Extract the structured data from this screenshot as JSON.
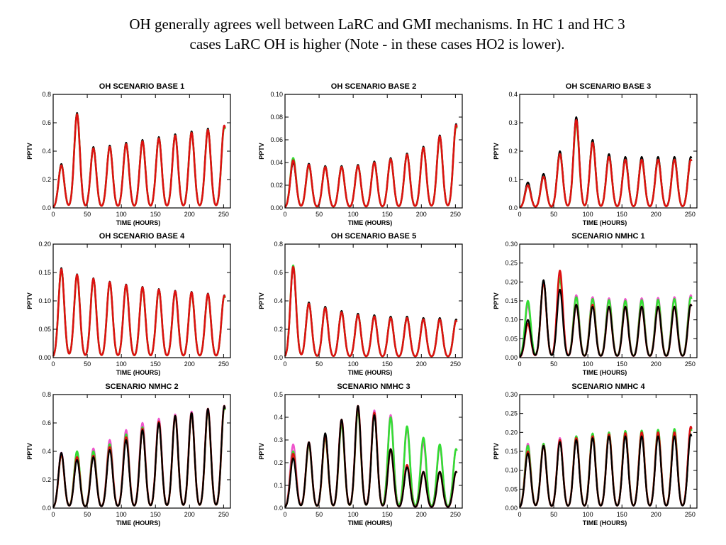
{
  "slide": {
    "title_line1": "OH generally agrees well between LaRC and GMI mechanisms.  In HC 1 and HC 3",
    "title_line2": "cases LaRC OH is higher (Note - in these cases HO2 is lower)."
  },
  "colors": {
    "black": "#000000",
    "green": "#33dd33",
    "red": "#dd1111",
    "magenta": "#ee55cc"
  },
  "chart_data": [
    {
      "type": "line",
      "title": "OH SCENARIO BASE      1",
      "xlabel": "TIME (HOURS)",
      "ylabel": "PPTV",
      "xlim": [
        0,
        260
      ],
      "ylim": [
        0,
        0.8
      ],
      "xticks": [
        "0",
        "50",
        "100",
        "150",
        "200",
        "250"
      ],
      "yticks": [
        "0.0",
        "0.2",
        "0.4",
        "0.6",
        "0.8"
      ],
      "peak_times": [
        12,
        35,
        59,
        83,
        107,
        131,
        155,
        179,
        203,
        227,
        251
      ],
      "series": [
        {
          "color": "black",
          "peaks": [
            0.31,
            0.67,
            0.43,
            0.44,
            0.46,
            0.48,
            0.5,
            0.52,
            0.54,
            0.56,
            0.58
          ]
        },
        {
          "color": "green",
          "peaks": [
            0.3,
            0.66,
            0.42,
            0.43,
            0.45,
            0.47,
            0.49,
            0.51,
            0.53,
            0.55,
            0.57
          ]
        },
        {
          "color": "red",
          "peaks": [
            0.3,
            0.66,
            0.42,
            0.43,
            0.45,
            0.47,
            0.49,
            0.51,
            0.53,
            0.55,
            0.58
          ]
        }
      ]
    },
    {
      "type": "line",
      "title": "OH SCENARIO BASE      2",
      "xlabel": "TIME (HOURS)",
      "ylabel": "PPTV",
      "xlim": [
        0,
        260
      ],
      "ylim": [
        0,
        0.1
      ],
      "xticks": [
        "0",
        "50",
        "100",
        "150",
        "200",
        "250"
      ],
      "yticks": [
        "0.00",
        "0.02",
        "0.04",
        "0.06",
        "0.08",
        "0.10"
      ],
      "peak_times": [
        12,
        35,
        59,
        83,
        107,
        131,
        155,
        179,
        203,
        227,
        251
      ],
      "series": [
        {
          "color": "black",
          "peaks": [
            0.04,
            0.039,
            0.037,
            0.037,
            0.038,
            0.041,
            0.044,
            0.048,
            0.054,
            0.064,
            0.074
          ]
        },
        {
          "color": "green",
          "peaks": [
            0.044,
            0.037,
            0.036,
            0.036,
            0.037,
            0.04,
            0.043,
            0.047,
            0.053,
            0.062,
            0.072
          ]
        },
        {
          "color": "red",
          "peaks": [
            0.042,
            0.038,
            0.036,
            0.036,
            0.037,
            0.04,
            0.043,
            0.047,
            0.053,
            0.063,
            0.073
          ]
        }
      ]
    },
    {
      "type": "line",
      "title": "OH SCENARIO BASE      3",
      "xlabel": "TIME (HOURS)",
      "ylabel": "PPTV",
      "xlim": [
        0,
        260
      ],
      "ylim": [
        0,
        0.4
      ],
      "xticks": [
        "0",
        "50",
        "100",
        "150",
        "200",
        "250"
      ],
      "yticks": [
        "0.0",
        "0.1",
        "0.2",
        "0.3",
        "0.4"
      ],
      "peak_times": [
        12,
        35,
        59,
        83,
        107,
        131,
        155,
        179,
        203,
        227,
        251
      ],
      "series": [
        {
          "color": "black",
          "peaks": [
            0.09,
            0.12,
            0.2,
            0.32,
            0.24,
            0.19,
            0.18,
            0.18,
            0.18,
            0.18,
            0.18
          ]
        },
        {
          "color": "green",
          "peaks": [
            0.08,
            0.11,
            0.19,
            0.3,
            0.23,
            0.18,
            0.17,
            0.17,
            0.17,
            0.17,
            0.17
          ]
        },
        {
          "color": "red",
          "peaks": [
            0.08,
            0.11,
            0.19,
            0.31,
            0.23,
            0.18,
            0.17,
            0.17,
            0.17,
            0.17,
            0.17
          ]
        }
      ]
    },
    {
      "type": "line",
      "title": "OH SCENARIO BASE      4",
      "xlabel": "TIME (HOURS)",
      "ylabel": "PPTV",
      "xlim": [
        0,
        260
      ],
      "ylim": [
        0,
        0.2
      ],
      "xticks": [
        "0",
        "50",
        "100",
        "150",
        "200",
        "250"
      ],
      "yticks": [
        "0.00",
        "0.05",
        "0.10",
        "0.15",
        "0.20"
      ],
      "peak_times": [
        12,
        35,
        59,
        83,
        107,
        131,
        155,
        179,
        203,
        227,
        251
      ],
      "series": [
        {
          "color": "black",
          "peaks": [
            0.158,
            0.147,
            0.14,
            0.134,
            0.129,
            0.125,
            0.121,
            0.118,
            0.116,
            0.113,
            0.11
          ]
        },
        {
          "color": "green",
          "peaks": [
            0.155,
            0.145,
            0.138,
            0.132,
            0.127,
            0.123,
            0.119,
            0.116,
            0.114,
            0.111,
            0.108
          ]
        },
        {
          "color": "red",
          "peaks": [
            0.156,
            0.146,
            0.139,
            0.133,
            0.128,
            0.124,
            0.12,
            0.117,
            0.115,
            0.112,
            0.109
          ]
        }
      ]
    },
    {
      "type": "line",
      "title": "OH SCENARIO BASE      5",
      "xlabel": "TIME (HOURS)",
      "ylabel": "PPTV",
      "xlim": [
        0,
        260
      ],
      "ylim": [
        0,
        0.8
      ],
      "xticks": [
        "0",
        "50",
        "100",
        "150",
        "200",
        "250"
      ],
      "yticks": [
        "0.0",
        "0.2",
        "0.4",
        "0.6",
        "0.8"
      ],
      "peak_times": [
        12,
        35,
        59,
        83,
        107,
        131,
        155,
        179,
        203,
        227,
        251
      ],
      "series": [
        {
          "color": "black",
          "peaks": [
            0.63,
            0.39,
            0.36,
            0.33,
            0.31,
            0.3,
            0.29,
            0.29,
            0.28,
            0.28,
            0.27
          ]
        },
        {
          "color": "green",
          "peaks": [
            0.65,
            0.38,
            0.35,
            0.32,
            0.3,
            0.29,
            0.28,
            0.28,
            0.27,
            0.27,
            0.26
          ]
        },
        {
          "color": "red",
          "peaks": [
            0.64,
            0.38,
            0.35,
            0.32,
            0.3,
            0.29,
            0.28,
            0.28,
            0.27,
            0.27,
            0.26
          ]
        }
      ]
    },
    {
      "type": "line",
      "title": "SCENARIO NMHC      1",
      "xlabel": "TIME (HOURS)",
      "ylabel": "PPTV",
      "xlim": [
        0,
        260
      ],
      "ylim": [
        0,
        0.3
      ],
      "xticks": [
        "0",
        "50",
        "100",
        "150",
        "200",
        "250"
      ],
      "yticks": [
        "0.00",
        "0.05",
        "0.10",
        "0.15",
        "0.20",
        "0.25",
        "0.30"
      ],
      "peak_times": [
        12,
        35,
        59,
        83,
        107,
        131,
        155,
        179,
        203,
        227,
        251
      ],
      "series": [
        {
          "color": "magenta",
          "peaks": [
            0.14,
            0.2,
            0.22,
            0.165,
            0.16,
            0.157,
            0.155,
            0.157,
            0.158,
            0.16,
            0.165
          ]
        },
        {
          "color": "green",
          "peaks": [
            0.15,
            0.2,
            0.21,
            0.16,
            0.155,
            0.152,
            0.15,
            0.152,
            0.153,
            0.155,
            0.16
          ]
        },
        {
          "color": "red",
          "peaks": [
            0.09,
            0.2,
            0.23,
            0.14,
            0.14,
            0.135,
            0.135,
            0.135,
            0.135,
            0.135,
            0.14
          ]
        },
        {
          "color": "black",
          "peaks": [
            0.1,
            0.205,
            0.18,
            0.14,
            0.135,
            0.135,
            0.135,
            0.135,
            0.135,
            0.135,
            0.14
          ]
        }
      ]
    },
    {
      "type": "line",
      "title": "SCENARIO NMHC      2",
      "xlabel": "TIME (HOURS)",
      "ylabel": "PPTV",
      "xlim": [
        0,
        260
      ],
      "ylim": [
        0,
        0.8
      ],
      "xticks": [
        "0",
        "50",
        "100",
        "150",
        "200",
        "250"
      ],
      "yticks": [
        "0.0",
        "0.2",
        "0.4",
        "0.6",
        "0.8"
      ],
      "peak_times": [
        12,
        35,
        59,
        83,
        107,
        131,
        155,
        179,
        203,
        227,
        251
      ],
      "series": [
        {
          "color": "magenta",
          "peaks": [
            0.39,
            0.39,
            0.42,
            0.48,
            0.55,
            0.6,
            0.63,
            0.66,
            0.68,
            0.7,
            0.72
          ]
        },
        {
          "color": "green",
          "peaks": [
            0.38,
            0.4,
            0.4,
            0.45,
            0.52,
            0.57,
            0.61,
            0.65,
            0.67,
            0.69,
            0.71
          ]
        },
        {
          "color": "red",
          "peaks": [
            0.38,
            0.36,
            0.37,
            0.43,
            0.5,
            0.56,
            0.61,
            0.65,
            0.67,
            0.7,
            0.72
          ]
        },
        {
          "color": "black",
          "peaks": [
            0.39,
            0.34,
            0.36,
            0.41,
            0.48,
            0.55,
            0.6,
            0.65,
            0.67,
            0.7,
            0.72
          ]
        }
      ]
    },
    {
      "type": "line",
      "title": "SCENARIO NMHC      3",
      "xlabel": "TIME (HOURS)",
      "ylabel": "PPTV",
      "xlim": [
        0,
        260
      ],
      "ylim": [
        0,
        0.5
      ],
      "xticks": [
        "0",
        "50",
        "100",
        "150",
        "200",
        "250"
      ],
      "yticks": [
        "0.0",
        "0.1",
        "0.2",
        "0.3",
        "0.4",
        "0.5"
      ],
      "peak_times": [
        12,
        35,
        59,
        83,
        107,
        131,
        155,
        179,
        203,
        227,
        251
      ],
      "series": [
        {
          "color": "magenta",
          "peaks": [
            0.28,
            0.28,
            0.32,
            0.38,
            0.44,
            0.43,
            0.41,
            0.35,
            0.29,
            0.27,
            0.26
          ]
        },
        {
          "color": "green",
          "peaks": [
            0.25,
            0.28,
            0.31,
            0.37,
            0.43,
            0.42,
            0.4,
            0.36,
            0.31,
            0.28,
            0.26
          ]
        },
        {
          "color": "red",
          "peaks": [
            0.24,
            0.29,
            0.32,
            0.39,
            0.45,
            0.42,
            0.26,
            0.19,
            0.16,
            0.16,
            0.16
          ]
        },
        {
          "color": "black",
          "peaks": [
            0.22,
            0.29,
            0.33,
            0.39,
            0.45,
            0.41,
            0.26,
            0.18,
            0.16,
            0.16,
            0.16
          ]
        }
      ]
    },
    {
      "type": "line",
      "title": "SCENARIO NMHC      4",
      "xlabel": "TIME (HOURS)",
      "ylabel": "PPTV",
      "xlim": [
        0,
        260
      ],
      "ylim": [
        0,
        0.3
      ],
      "xticks": [
        "0",
        "50",
        "100",
        "150",
        "200",
        "250"
      ],
      "yticks": [
        "0.00",
        "0.05",
        "0.10",
        "0.15",
        "0.20",
        "0.25",
        "0.30"
      ],
      "peak_times": [
        12,
        35,
        59,
        83,
        107,
        131,
        155,
        179,
        203,
        227,
        251
      ],
      "series": [
        {
          "color": "magenta",
          "peaks": [
            0.17,
            0.17,
            0.185,
            0.19,
            0.195,
            0.2,
            0.202,
            0.203,
            0.205,
            0.207,
            0.215
          ]
        },
        {
          "color": "green",
          "peaks": [
            0.165,
            0.17,
            0.18,
            0.19,
            0.197,
            0.2,
            0.204,
            0.205,
            0.207,
            0.209,
            0.21
          ]
        },
        {
          "color": "red",
          "peaks": [
            0.15,
            0.165,
            0.18,
            0.185,
            0.19,
            0.195,
            0.198,
            0.2,
            0.2,
            0.2,
            0.215
          ]
        },
        {
          "color": "black",
          "peaks": [
            0.145,
            0.165,
            0.175,
            0.18,
            0.185,
            0.19,
            0.19,
            0.19,
            0.19,
            0.19,
            0.195
          ]
        }
      ]
    }
  ]
}
